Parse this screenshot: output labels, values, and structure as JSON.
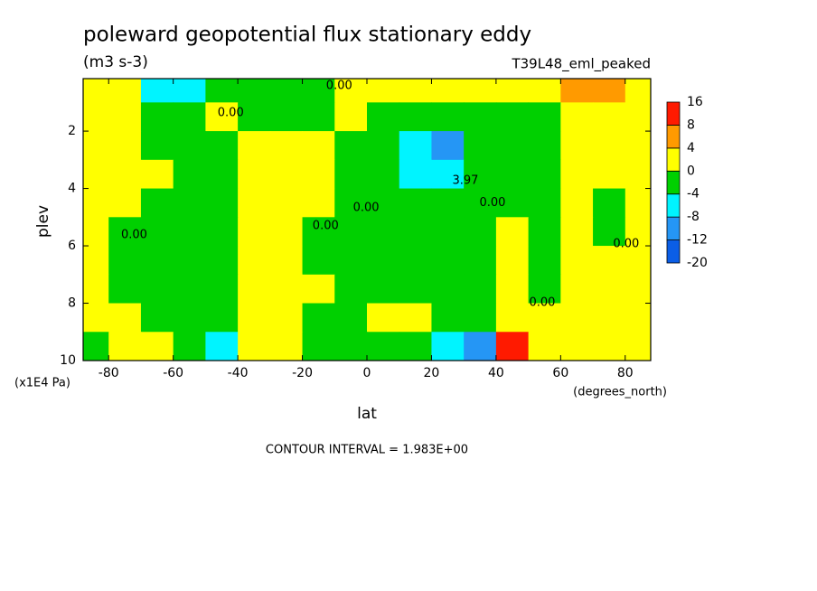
{
  "chart_data": {
    "type": "contour",
    "title": "poleward geopotential flux stationary eddy",
    "units": "(m3 s-3)",
    "run_label": "T39L48_eml_peaked",
    "xlabel": "lat",
    "ylabel": "plev",
    "xunits": "(degrees_north)",
    "yunits": "(x1E4 Pa)",
    "footnote": "CONTOUR INTERVAL = 1.983E+00",
    "xlim": [
      -87.9,
      87.9
    ],
    "xticks": [
      -80,
      -60,
      -40,
      -20,
      0,
      20,
      40,
      60,
      80
    ],
    "ylim": [
      10,
      0.17
    ],
    "yticks": [
      2,
      4,
      6,
      8,
      10
    ],
    "x": [
      -85,
      -75,
      -65,
      -55,
      -45,
      -35,
      -25,
      -15,
      -5,
      5,
      15,
      25,
      35,
      45,
      55,
      65,
      75,
      85
    ],
    "y": [
      0.5,
      1.5,
      2.5,
      3.5,
      4.5,
      5.5,
      6.5,
      7.5,
      8.5,
      9.5
    ],
    "z": [
      [
        1,
        1,
        -5,
        -5,
        -1,
        -1,
        -1,
        -1,
        1,
        1,
        1,
        1,
        1,
        1,
        1,
        5,
        5,
        1
      ],
      [
        1,
        1,
        -1,
        -1,
        1,
        -1,
        -1,
        -1,
        1,
        -1,
        -1,
        -1,
        -1,
        -1,
        -1,
        1,
        1,
        1
      ],
      [
        1,
        1,
        -1,
        -1,
        -1,
        1,
        1,
        1,
        -1,
        -1,
        -6,
        -10,
        -1,
        -1,
        -1,
        1,
        1,
        1
      ],
      [
        1,
        1,
        1,
        -1,
        -1,
        1,
        1,
        1,
        -1,
        -1,
        -5,
        -6,
        -1,
        -1,
        -1,
        1,
        1,
        1
      ],
      [
        1,
        1,
        -1,
        -1,
        -1,
        1,
        1,
        1,
        -1,
        -1,
        -1,
        -1,
        -1,
        -1,
        -1,
        1,
        -1,
        1
      ],
      [
        1,
        -1,
        -1,
        -1,
        -1,
        1,
        1,
        -1,
        -1,
        -1,
        -1,
        -1,
        -1,
        1,
        -1,
        1,
        -1,
        1
      ],
      [
        1,
        -1,
        -1,
        -1,
        -1,
        1,
        1,
        -1,
        -1,
        -1,
        -1,
        -1,
        -1,
        1,
        -1,
        1,
        1,
        1
      ],
      [
        1,
        -1,
        -1,
        -1,
        -1,
        1,
        1,
        1,
        -1,
        -1,
        -1,
        -1,
        -1,
        1,
        -1,
        1,
        1,
        1
      ],
      [
        1,
        1,
        -1,
        -1,
        -1,
        1,
        1,
        -1,
        -1,
        1,
        1,
        -1,
        -1,
        1,
        1,
        1,
        1,
        1
      ],
      [
        -1,
        1,
        1,
        -1,
        -5,
        1,
        1,
        -1,
        -1,
        -1,
        -1,
        -6,
        -10,
        10,
        1,
        1,
        1,
        1
      ]
    ],
    "colorbar": {
      "levels": [
        -20,
        -12,
        -8,
        -4,
        0,
        4,
        8,
        16
      ],
      "colors": [
        "#0b5ee6",
        "#2596f5",
        "#00f4ff",
        "#00d000",
        "#ffff00",
        "#ff9a00",
        "#ff1a00"
      ]
    },
    "contour_labels": [
      {
        "text": "0.00",
        "x": -8.6,
        "y": 0.42
      },
      {
        "text": "0.00",
        "x": -42.2,
        "y": 1.37
      },
      {
        "text": "0.00",
        "x": -72.1,
        "y": 5.62
      },
      {
        "text": "0.00",
        "x": -12.8,
        "y": 5.3
      },
      {
        "text": "0.00",
        "x": -0.25,
        "y": 4.67
      },
      {
        "text": "3.97",
        "x": 30.5,
        "y": 3.73
      },
      {
        "text": "0.00",
        "x": 38.9,
        "y": 4.5
      },
      {
        "text": "0.00",
        "x": 54.3,
        "y": 7.98
      },
      {
        "text": "0.00",
        "x": 80.3,
        "y": 5.93
      }
    ]
  }
}
